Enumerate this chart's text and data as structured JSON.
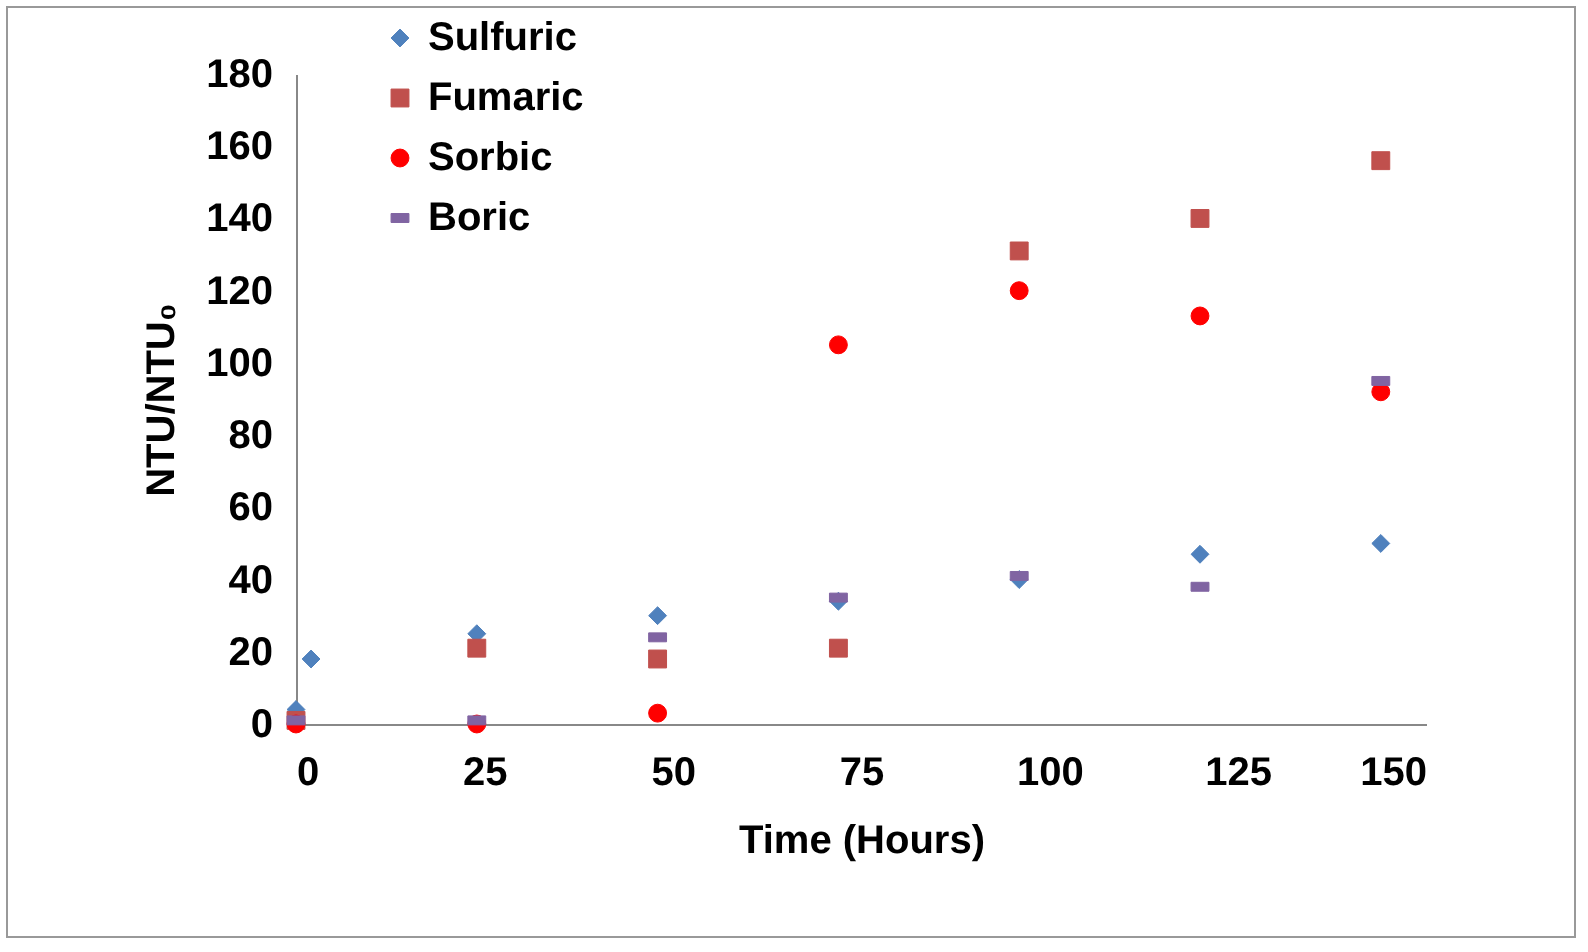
{
  "chart_data": {
    "type": "scatter",
    "xlabel": "Time (Hours)",
    "ylabel": "NTU/NTU₀",
    "xlim": [
      0,
      150
    ],
    "xticks": [
      0,
      25,
      50,
      75,
      100,
      125,
      150
    ],
    "ylim": [
      0,
      180
    ],
    "yticks": [
      0,
      20,
      40,
      60,
      80,
      100,
      120,
      140,
      160,
      180
    ],
    "grid": false,
    "legend": "top left",
    "series": [
      {
        "name": "Sulfuric",
        "color": "#4f81bd",
        "marker": "diamond",
        "x": [
          0,
          2,
          24,
          48,
          72,
          96,
          120,
          144
        ],
        "values": [
          4,
          18,
          25,
          30,
          34,
          40,
          47,
          50
        ]
      },
      {
        "name": "Fumaric",
        "color": "#c0504d",
        "marker": "square",
        "x": [
          0,
          24,
          48,
          72,
          96,
          120,
          144
        ],
        "values": [
          1,
          21,
          18,
          21,
          131,
          140,
          156
        ]
      },
      {
        "name": "Sorbic",
        "color": "#ff0000",
        "marker": "circle",
        "x": [
          0,
          24,
          48,
          72,
          96,
          120,
          144
        ],
        "values": [
          0,
          0,
          3,
          105,
          120,
          113,
          92
        ]
      },
      {
        "name": "Boric",
        "color": "#8064a2",
        "x": [
          0,
          24,
          48,
          72,
          96,
          120,
          144
        ],
        "values": [
          1,
          1,
          24,
          35,
          41,
          38,
          95
        ]
      }
    ]
  }
}
